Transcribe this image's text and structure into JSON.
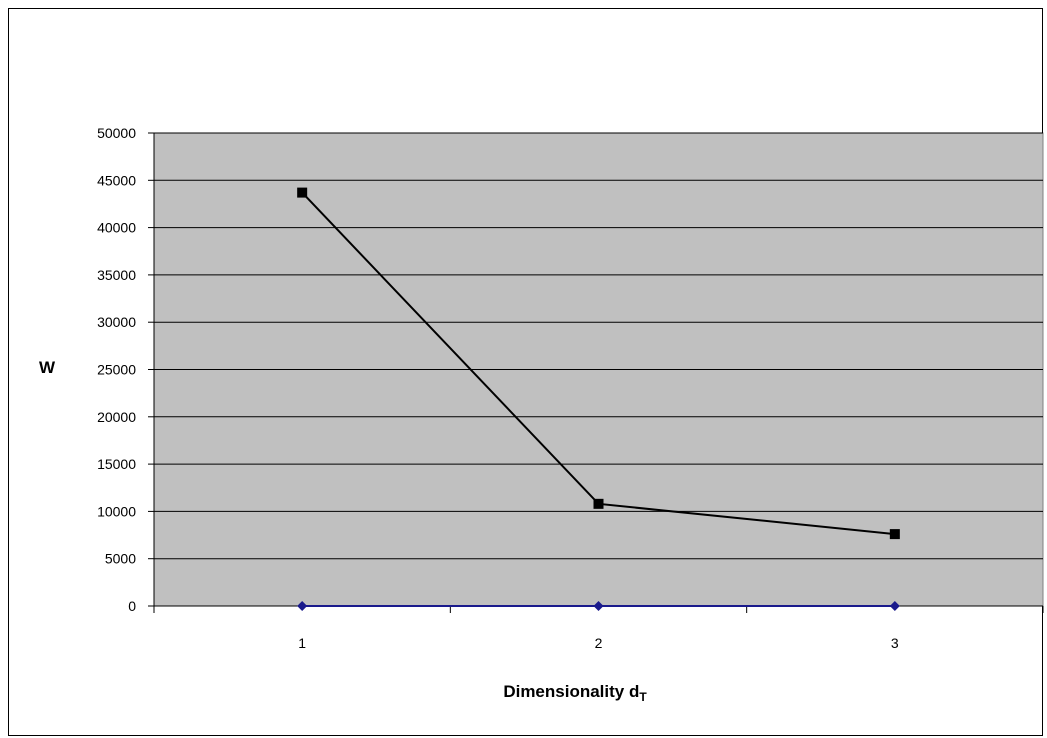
{
  "chart_data": {
    "type": "line",
    "title": "",
    "xlabel": "Dimensionality d",
    "xlabel_subscript": "T",
    "ylabel": "W",
    "categories": [
      "1",
      "2",
      "3"
    ],
    "ylim": [
      0,
      50000
    ],
    "yticks": [
      0,
      5000,
      10000,
      15000,
      20000,
      25000,
      30000,
      35000,
      40000,
      45000,
      50000
    ],
    "grid": true,
    "legend": "none",
    "plot_background": "#c0c0c0",
    "series": [
      {
        "values": [
          43700,
          10800,
          7600
        ],
        "color": "#000000",
        "marker": "square"
      },
      {
        "values": [
          0,
          0,
          0
        ],
        "color": "#1a1a8c",
        "marker": "diamond"
      }
    ]
  }
}
